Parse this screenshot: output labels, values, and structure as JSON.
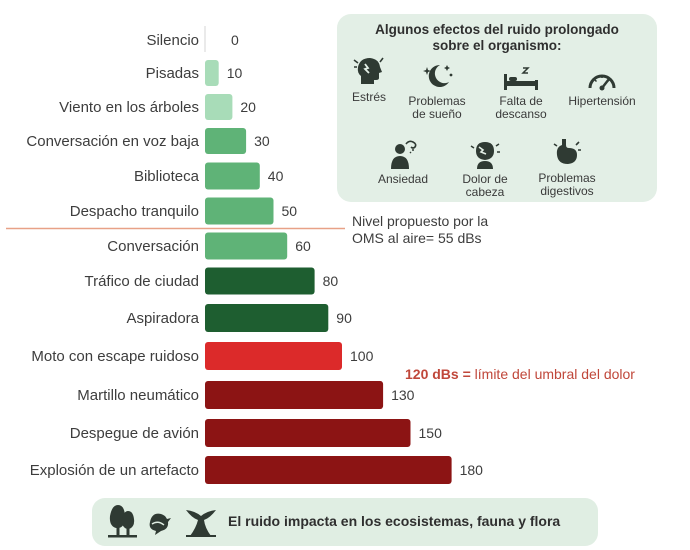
{
  "chart_data": {
    "type": "bar",
    "orientation": "horizontal",
    "categories": [
      "Silencio",
      "Pisadas",
      "Viento en los árboles",
      "Conversación en voz baja",
      "Biblioteca",
      "Despacho tranquilo",
      "Conversación",
      "Tráfico de ciudad",
      "Aspiradora",
      "Moto con escape ruidoso",
      "Martillo neumático",
      "Despegue de avión",
      "Explosión de un artefacto"
    ],
    "values": [
      0,
      10,
      20,
      30,
      40,
      50,
      60,
      80,
      90,
      100,
      130,
      150,
      180
    ],
    "bar_colors": [
      "#a8dcb8",
      "#a8dcb8",
      "#a8dcb8",
      "#5fb377",
      "#5fb377",
      "#5fb377",
      "#5fb377",
      "#1e5e30",
      "#1e5e30",
      "#dc2a2a",
      "#8c1414",
      "#8c1414",
      "#8c1414"
    ],
    "unit": "dBs",
    "reference_line": {
      "value": 55,
      "color": "#e8a187",
      "label_line1": "Nivel propuesto por la",
      "label_line2": "OMS al aire= 55 dBs"
    },
    "threshold_annotation": {
      "value": 120,
      "bold_text": "120 dBs =",
      "text": "límite del umbral del dolor",
      "color": "#c0473a"
    }
  },
  "effects": {
    "title_line1": "Algunos efectos del ruido prolongado",
    "title_line2": "sobre el organismo:",
    "items": [
      {
        "icon": "stress-head-icon",
        "lines": [
          "Estrés"
        ]
      },
      {
        "icon": "moon-stars-icon",
        "lines": [
          "Problemas",
          "de sueño"
        ]
      },
      {
        "icon": "bed-icon",
        "lines": [
          "Falta de",
          "descanso"
        ]
      },
      {
        "icon": "gauge-icon",
        "lines": [
          "Hipertensión"
        ]
      },
      {
        "icon": "anxious-person-icon",
        "lines": [
          "Ansiedad"
        ]
      },
      {
        "icon": "headache-icon",
        "lines": [
          "Dolor de",
          "cabeza"
        ]
      },
      {
        "icon": "stomach-icon",
        "lines": [
          "Problemas",
          "digestivos"
        ]
      }
    ]
  },
  "eco_banner": {
    "text": "El ruido impacta en los ecosistemas, fauna y flora",
    "icons": [
      "trees-icon",
      "bird-icon",
      "whale-tail-icon"
    ]
  },
  "colors": {
    "icon_dark": "#2f3a33",
    "panel_bg": "#e3efe6",
    "banner_bg": "#e0eee3"
  }
}
